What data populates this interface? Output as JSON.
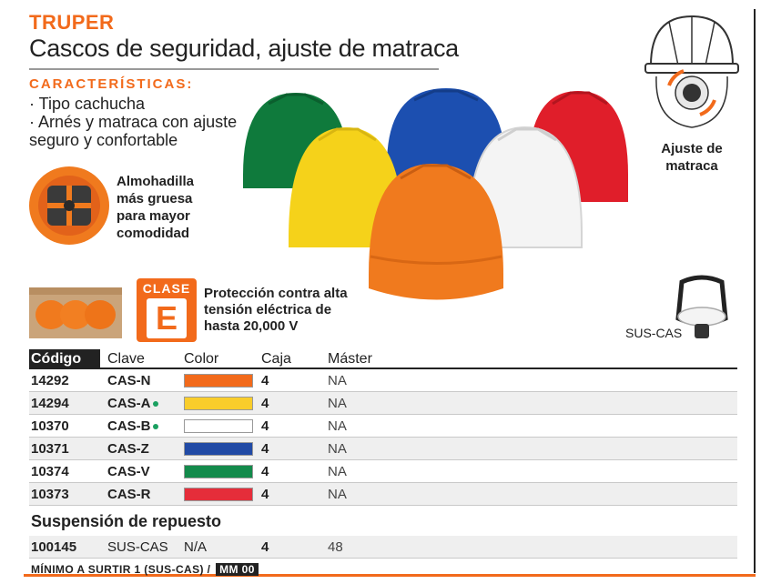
{
  "brand": "TRUPER",
  "title": "Cascos de seguridad, ajuste de matraca",
  "features": {
    "heading": "CARACTERÍSTICAS:",
    "items": [
      "· Tipo cachucha",
      "· Arnés y matraca con ajuste\n  seguro y confortable"
    ]
  },
  "pad_caption": "Almohadilla más gruesa para mayor comodidad",
  "class_badge": {
    "label": "CLASE",
    "letter": "E"
  },
  "class_caption": "Protección contra alta tensión eléctrica de hasta 20,000 V",
  "ratchet_caption": "Ajuste de matraca",
  "suspension_label": "SUS-CAS",
  "table": {
    "headers": {
      "code": "Código",
      "clave": "Clave",
      "color": "Color",
      "caja": "Caja",
      "master": "Máster"
    },
    "rows": [
      {
        "code": "14292",
        "clave": "CAS-N",
        "color": "#f26a1b",
        "caja": "4",
        "master": "NA",
        "dot": false
      },
      {
        "code": "14294",
        "clave": "CAS-A",
        "color": "#f9cd2b",
        "caja": "4",
        "master": "NA",
        "dot": true
      },
      {
        "code": "10370",
        "clave": "CAS-B",
        "color": "#ffffff",
        "caja": "4",
        "master": "NA",
        "dot": true
      },
      {
        "code": "10371",
        "clave": "CAS-Z",
        "color": "#214aa5",
        "caja": "4",
        "master": "NA",
        "dot": false
      },
      {
        "code": "10374",
        "clave": "CAS-V",
        "color": "#138a4b",
        "caja": "4",
        "master": "NA",
        "dot": false
      },
      {
        "code": "10373",
        "clave": "CAS-R",
        "color": "#e52d3a",
        "caja": "4",
        "master": "NA",
        "dot": false
      }
    ]
  },
  "spare": {
    "heading": "Suspensión de repuesto",
    "code": "100145",
    "clave": "SUS-CAS",
    "color": "N/A",
    "caja": "4",
    "master": "48"
  },
  "footer": {
    "note": "MÍNIMO A SURTIR 1 (SUS-CAS) /",
    "unit": "MM 00"
  },
  "helmet_colors": [
    "#0f7a3c",
    "#1c4fb0",
    "#e01e2a",
    "#f5d21a",
    "#f4f4f4",
    "#f07a1e"
  ]
}
